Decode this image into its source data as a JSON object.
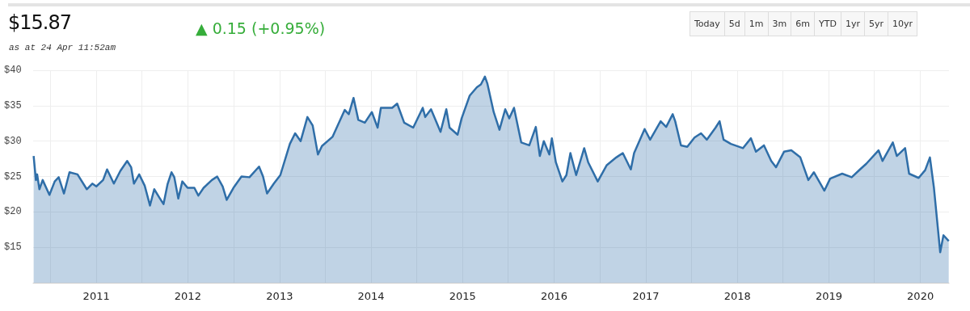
{
  "chart_data": {
    "type": "area",
    "title": "$15.87",
    "subtitle": "as at 24 Apr 11:52am",
    "annotations": [
      "▲ 0.15 (+0.95%)",
      "Today",
      "5d",
      "1m",
      "3m",
      "6m",
      "YTD",
      "1yr",
      "5yr",
      "10yr"
    ],
    "x": [
      "2010-04-26",
      "2010-05-05",
      "2010-05-10",
      "2010-05-19",
      "2010-06-01",
      "2010-06-28",
      "2010-07-19",
      "2010-08-04",
      "2010-08-25",
      "2010-09-16",
      "2010-10-18",
      "2010-11-24",
      "2010-12-16",
      "2011-01-01",
      "2011-01-28",
      "2011-02-13",
      "2011-03-12",
      "2011-04-07",
      "2011-05-04",
      "2011-05-20",
      "2011-05-31",
      "2011-06-21",
      "2011-07-13",
      "2011-08-03",
      "2011-08-20",
      "2011-09-10",
      "2011-09-26",
      "2011-10-12",
      "2011-10-28",
      "2011-11-08",
      "2011-11-24",
      "2011-12-10",
      "2011-12-31",
      "2012-01-27",
      "2012-02-12",
      "2012-03-04",
      "2012-04-06",
      "2012-04-27",
      "2012-05-19",
      "2012-06-04",
      "2012-07-01",
      "2012-08-02",
      "2012-09-03",
      "2012-10-11",
      "2012-10-27",
      "2012-11-12",
      "2012-12-09",
      "2013-01-04",
      "2013-02-11",
      "2013-03-04",
      "2013-03-26",
      "2013-04-22",
      "2013-05-13",
      "2013-06-03",
      "2013-06-19",
      "2013-07-31",
      "2013-09-18",
      "2013-10-04",
      "2013-10-23",
      "2013-11-11",
      "2013-12-07",
      "2014-01-04",
      "2014-01-27",
      "2014-02-09",
      "2014-03-26",
      "2014-04-15",
      "2014-05-13",
      "2014-06-18",
      "2014-07-26",
      "2014-08-05",
      "2014-08-28",
      "2014-10-05",
      "2014-10-28",
      "2014-11-10",
      "2014-12-12",
      "2014-12-28",
      "2015-01-29",
      "2015-02-27",
      "2015-03-15",
      "2015-03-31",
      "2015-04-10",
      "2015-05-05",
      "2015-05-28",
      "2015-06-20",
      "2015-07-06",
      "2015-07-25",
      "2015-08-23",
      "2015-09-24",
      "2015-10-20",
      "2015-11-05",
      "2015-11-21",
      "2015-12-13",
      "2015-12-23",
      "2016-01-08",
      "2016-02-03",
      "2016-02-19",
      "2016-03-06",
      "2016-03-29",
      "2016-04-30",
      "2016-05-16",
      "2016-06-23",
      "2016-07-29",
      "2016-09-05",
      "2016-10-01",
      "2016-11-02",
      "2016-11-15",
      "2016-12-27",
      "2017-01-18",
      "2017-03-01",
      "2017-03-23",
      "2017-04-18",
      "2017-04-28",
      "2017-05-21",
      "2017-06-15",
      "2017-07-14",
      "2017-08-09",
      "2017-09-01",
      "2017-10-06",
      "2017-10-22",
      "2017-11-07",
      "2017-12-06",
      "2018-01-23",
      "2018-02-24",
      "2018-03-16",
      "2018-04-17",
      "2018-05-16",
      "2018-06-04",
      "2018-07-06",
      "2018-08-04",
      "2018-09-09",
      "2018-10-11",
      "2018-11-02",
      "2018-12-14",
      "2019-01-06",
      "2019-02-23",
      "2019-04-02",
      "2019-05-05",
      "2019-05-30",
      "2019-07-18",
      "2019-08-03",
      "2019-09-13",
      "2019-09-29",
      "2019-11-01",
      "2019-11-17",
      "2019-12-25",
      "2020-01-20",
      "2020-02-08",
      "2020-02-24",
      "2020-03-20",
      "2020-04-02",
      "2020-04-23"
    ],
    "series": [
      {
        "color": "#2f6ea8",
        "values": [
          27.9,
          24.5,
          25.3,
          23.2,
          24.5,
          22.4,
          24.3,
          24.9,
          22.6,
          25.6,
          25.3,
          23.2,
          24.0,
          23.6,
          24.5,
          26.0,
          24.0,
          25.8,
          27.2,
          26.3,
          24.0,
          25.3,
          23.7,
          20.9,
          23.2,
          22.0,
          21.1,
          23.9,
          25.6,
          24.9,
          21.9,
          24.3,
          23.4,
          23.4,
          22.3,
          23.4,
          24.5,
          25.0,
          23.6,
          21.7,
          23.4,
          25.0,
          24.9,
          26.4,
          25.0,
          22.6,
          24.0,
          25.2,
          29.6,
          31.1,
          30.0,
          33.4,
          32.2,
          28.1,
          29.3,
          30.6,
          34.4,
          33.8,
          36.1,
          33.0,
          32.6,
          34.1,
          31.9,
          34.7,
          34.7,
          35.3,
          32.6,
          31.9,
          34.7,
          33.4,
          34.5,
          31.3,
          34.5,
          31.9,
          30.9,
          33.2,
          36.4,
          37.6,
          38.0,
          39.1,
          38.1,
          34.1,
          31.6,
          34.5,
          33.2,
          34.7,
          29.8,
          29.4,
          32.0,
          27.9,
          30.0,
          28.1,
          30.4,
          27.0,
          24.3,
          25.2,
          28.3,
          25.2,
          29.0,
          27.0,
          24.3,
          26.6,
          27.7,
          28.3,
          26.0,
          28.3,
          31.7,
          30.2,
          32.8,
          32.0,
          33.8,
          32.8,
          29.4,
          29.2,
          30.5,
          31.1,
          30.2,
          31.9,
          32.8,
          30.2,
          29.6,
          29.0,
          30.4,
          28.5,
          29.4,
          27.2,
          26.3,
          28.5,
          28.7,
          27.7,
          24.5,
          25.6,
          23.0,
          24.7,
          25.4,
          24.9,
          26.0,
          26.8,
          28.7,
          27.2,
          29.8,
          27.9,
          29.0,
          25.4,
          24.8,
          25.9,
          27.7,
          23.4,
          14.3,
          16.7,
          15.9
        ]
      }
    ],
    "xlim": [
      "2010-04-24",
      "2020-04-24"
    ],
    "xticks": [
      {
        "value": "2010-07-01",
        "label": null
      },
      {
        "value": "2011-01-01",
        "label": "2011"
      },
      {
        "value": "2011-07-01",
        "label": null
      },
      {
        "value": "2012-01-01",
        "label": "2012"
      },
      {
        "value": "2012-07-01",
        "label": null
      },
      {
        "value": "2013-01-01",
        "label": "2013"
      },
      {
        "value": "2013-07-01",
        "label": null
      },
      {
        "value": "2014-01-01",
        "label": "2014"
      },
      {
        "value": "2014-07-01",
        "label": null
      },
      {
        "value": "2015-01-01",
        "label": "2015"
      },
      {
        "value": "2015-07-01",
        "label": null
      },
      {
        "value": "2016-01-01",
        "label": "2016"
      },
      {
        "value": "2016-07-01",
        "label": null
      },
      {
        "value": "2017-01-01",
        "label": "2017"
      },
      {
        "value": "2017-07-01",
        "label": null
      },
      {
        "value": "2018-01-01",
        "label": "2018"
      },
      {
        "value": "2018-07-01",
        "label": null
      },
      {
        "value": "2019-01-01",
        "label": "2019"
      },
      {
        "value": "2019-07-01",
        "label": null
      },
      {
        "value": "2020-01-01",
        "label": "2020"
      }
    ],
    "ylim": [
      10,
      40
    ],
    "yticks": [
      {
        "value": 15,
        "label": "$15"
      },
      {
        "value": 20,
        "label": "$20"
      },
      {
        "value": 25,
        "label": "$25"
      },
      {
        "value": 30,
        "label": "$30"
      },
      {
        "value": 35,
        "label": "$35"
      },
      {
        "value": 40,
        "label": "$40"
      }
    ],
    "grid": true,
    "marker": "none",
    "line_style": "solid"
  }
}
